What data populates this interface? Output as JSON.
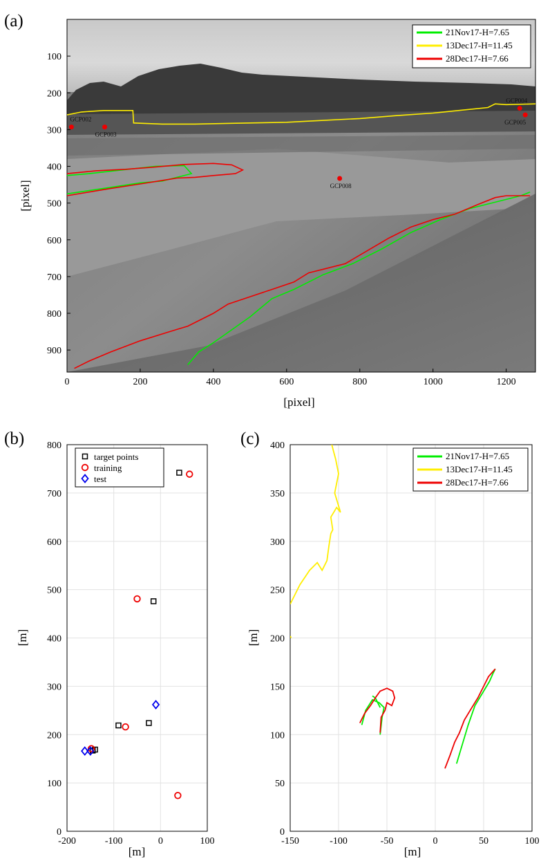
{
  "colors": {
    "green": "#00ee00",
    "yellow": "#ffee00",
    "red": "#ee0000",
    "blue": "#0000ee",
    "black": "#000000"
  },
  "panel_a": {
    "label": "(a)",
    "chart_data": {
      "type": "line",
      "xlabel": "[pixel]",
      "ylabel": "[pixel]",
      "xlim": [
        0,
        1280
      ],
      "ylim": [
        960,
        0
      ],
      "y_reversed": true,
      "xticks": [
        0,
        200,
        400,
        600,
        800,
        1000,
        1200
      ],
      "yticks": [
        100,
        200,
        300,
        400,
        500,
        600,
        700,
        800,
        900
      ],
      "grid": false,
      "background": "grayscale photograph of river bank",
      "legend_position": "top-right",
      "series": [
        {
          "name": "21Nov17-H=7.65",
          "color": "green",
          "segments": [
            [
              [
                0,
                425
              ],
              [
                60,
                420
              ],
              [
                150,
                410
              ],
              [
                240,
                400
              ],
              [
                320,
                398
              ],
              [
                340,
                420
              ],
              [
                260,
                440
              ],
              [
                200,
                445
              ],
              [
                100,
                460
              ],
              [
                0,
                475
              ]
            ],
            [
              [
                330,
                940
              ],
              [
                360,
                905
              ],
              [
                400,
                880
              ],
              [
                450,
                845
              ],
              [
                500,
                810
              ],
              [
                560,
                760
              ],
              [
                620,
                735
              ],
              [
                700,
                695
              ],
              [
                780,
                665
              ],
              [
                860,
                625
              ],
              [
                940,
                580
              ],
              [
                1020,
                545
              ],
              [
                1100,
                515
              ],
              [
                1180,
                495
              ],
              [
                1240,
                480
              ],
              [
                1265,
                470
              ]
            ]
          ]
        },
        {
          "name": "13Dec17-H=11.45",
          "color": "yellow",
          "segments": [
            [
              [
                0,
                260
              ],
              [
                40,
                252
              ],
              [
                100,
                248
              ],
              [
                180,
                248
              ],
              [
                182,
                282
              ],
              [
                260,
                285
              ],
              [
                350,
                285
              ],
              [
                450,
                283
              ],
              [
                600,
                280
              ],
              [
                700,
                275
              ],
              [
                800,
                270
              ],
              [
                900,
                262
              ],
              [
                1000,
                255
              ],
              [
                1050,
                250
              ],
              [
                1100,
                245
              ],
              [
                1150,
                240
              ],
              [
                1170,
                230
              ],
              [
                1200,
                232
              ],
              [
                1280,
                230
              ]
            ]
          ]
        },
        {
          "name": "28Dec17-H=7.66",
          "color": "red",
          "segments": [
            [
              [
                0,
                420
              ],
              [
                80,
                412
              ],
              [
                160,
                408
              ],
              [
                240,
                402
              ],
              [
                320,
                395
              ],
              [
                400,
                392
              ],
              [
                450,
                396
              ],
              [
                480,
                410
              ],
              [
                460,
                420
              ],
              [
                400,
                425
              ],
              [
                350,
                430
              ],
              [
                300,
                432
              ],
              [
                250,
                440
              ],
              [
                200,
                448
              ],
              [
                120,
                460
              ],
              [
                60,
                470
              ],
              [
                0,
                480
              ]
            ],
            [
              [
                20,
                950
              ],
              [
                60,
                930
              ],
              [
                120,
                905
              ],
              [
                200,
                875
              ],
              [
                280,
                850
              ],
              [
                330,
                835
              ],
              [
                400,
                800
              ],
              [
                440,
                775
              ],
              [
                500,
                755
              ],
              [
                560,
                735
              ],
              [
                620,
                715
              ],
              [
                660,
                690
              ],
              [
                700,
                680
              ],
              [
                760,
                665
              ],
              [
                820,
                630
              ],
              [
                880,
                595
              ],
              [
                940,
                565
              ],
              [
                1000,
                545
              ],
              [
                1060,
                530
              ],
              [
                1120,
                505
              ],
              [
                1170,
                485
              ],
              [
                1200,
                480
              ],
              [
                1265,
                480
              ]
            ]
          ]
        }
      ],
      "points": [
        {
          "label": "GCP002",
          "x": 12,
          "y": 293
        },
        {
          "label": "GCP003",
          "x": 103,
          "y": 293
        },
        {
          "label": "GCP008",
          "x": 745,
          "y": 433
        },
        {
          "label": "GCP004",
          "x": 1237,
          "y": 242
        },
        {
          "label": "GCP005",
          "x": 1252,
          "y": 260
        }
      ]
    }
  },
  "panel_b": {
    "label": "(b)",
    "chart_data": {
      "type": "scatter",
      "xlabel": "[m]",
      "ylabel": "[m]",
      "xlim": [
        -200,
        100
      ],
      "ylim": [
        0,
        800
      ],
      "xticks": [
        -200,
        -100,
        0,
        100
      ],
      "yticks": [
        0,
        100,
        200,
        300,
        400,
        500,
        600,
        700,
        800
      ],
      "grid": true,
      "legend_position": "top-left",
      "series": [
        {
          "name": "target points",
          "marker": "square",
          "color": "black",
          "x": [
            40,
            -15,
            -90,
            -25,
            -140,
            -145
          ],
          "y": [
            742,
            476,
            219,
            224,
            169,
            167
          ]
        },
        {
          "name": "training",
          "marker": "circle",
          "color": "red",
          "x": [
            62,
            -50,
            -75,
            37,
            -148
          ],
          "y": [
            739,
            481,
            216,
            74,
            171
          ]
        },
        {
          "name": "test",
          "marker": "diamond",
          "color": "blue",
          "x": [
            -10,
            -162,
            -150
          ],
          "y": [
            262,
            166,
            166
          ]
        }
      ]
    }
  },
  "panel_c": {
    "label": "(c)",
    "chart_data": {
      "type": "line",
      "xlabel": "[m]",
      "ylabel": "[m]",
      "xlim": [
        -150,
        100
      ],
      "ylim": [
        0,
        400
      ],
      "xticks": [
        -150,
        -100,
        -50,
        0,
        50,
        100
      ],
      "yticks": [
        0,
        50,
        100,
        150,
        200,
        250,
        300,
        350,
        400
      ],
      "grid": true,
      "legend_position": "top-right",
      "series": [
        {
          "name": "21Nov17-H=7.65",
          "color": "green",
          "segments": [
            [
              [
                -57,
                100
              ],
              [
                -55,
                118
              ],
              [
                -53,
                128
              ],
              [
                -58,
                133
              ],
              [
                -65,
                136
              ],
              [
                -72,
                125
              ],
              [
                -76,
                110
              ]
            ],
            [
              [
                -57,
                128
              ],
              [
                -62,
                138
              ],
              [
                -65,
                140
              ]
            ],
            [
              [
                22,
                70
              ],
              [
                28,
                90
              ],
              [
                34,
                110
              ],
              [
                41,
                130
              ],
              [
                50,
                145
              ],
              [
                56,
                155
              ],
              [
                60,
                164
              ],
              [
                62,
                168
              ]
            ]
          ]
        },
        {
          "name": "13Dec17-H=11.45",
          "color": "yellow",
          "segments": [
            [
              [
                -150,
                235
              ],
              [
                -140,
                255
              ],
              [
                -130,
                270
              ],
              [
                -122,
                278
              ],
              [
                -117,
                270
              ],
              [
                -112,
                280
              ],
              [
                -110,
                295
              ],
              [
                -108,
                308
              ],
              [
                -106,
                312
              ],
              [
                -108,
                325
              ],
              [
                -102,
                335
              ],
              [
                -98,
                330
              ],
              [
                -104,
                350
              ],
              [
                -100,
                370
              ],
              [
                -103,
                385
              ],
              [
                -107,
                400
              ]
            ],
            [
              [
                -150,
                202
              ],
              [
                -149,
                200
              ]
            ]
          ]
        },
        {
          "name": "28Dec17-H=7.66",
          "color": "red",
          "segments": [
            [
              [
                -57,
                102
              ],
              [
                -56,
                118
              ],
              [
                -52,
                125
              ],
              [
                -50,
                133
              ],
              [
                -45,
                130
              ],
              [
                -42,
                138
              ],
              [
                -44,
                145
              ],
              [
                -50,
                148
              ],
              [
                -57,
                145
              ],
              [
                -62,
                138
              ],
              [
                -67,
                130
              ],
              [
                -73,
                122
              ],
              [
                -78,
                112
              ]
            ],
            [
              [
                10,
                65
              ],
              [
                15,
                78
              ],
              [
                20,
                92
              ],
              [
                25,
                102
              ],
              [
                30,
                115
              ],
              [
                36,
                125
              ],
              [
                44,
                138
              ],
              [
                50,
                150
              ],
              [
                55,
                160
              ],
              [
                62,
                168
              ]
            ]
          ]
        }
      ]
    }
  }
}
